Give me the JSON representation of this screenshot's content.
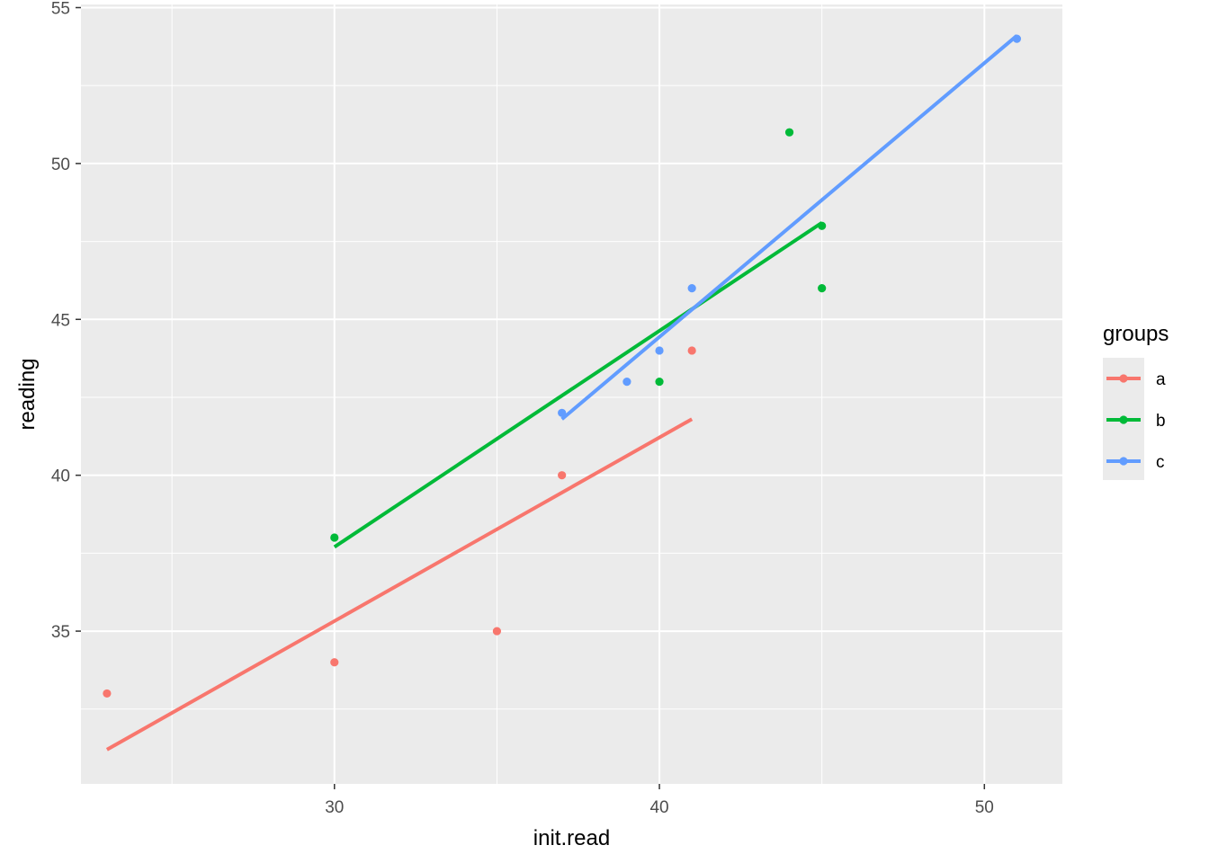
{
  "chart_data": {
    "type": "scatter",
    "xlabel": "init.read",
    "ylabel": "reading",
    "xlim": [
      22.2,
      52.4
    ],
    "ylim": [
      30.1,
      55.1
    ],
    "x_ticks": [
      30,
      40,
      50
    ],
    "x_minor_ticks": [
      25,
      35,
      45
    ],
    "y_ticks": [
      35,
      40,
      45,
      50,
      55
    ],
    "y_minor_ticks": [
      32.5,
      37.5,
      42.5,
      47.5,
      52.5
    ],
    "grid": true,
    "legend": {
      "title": "groups",
      "placement": "right"
    },
    "series": [
      {
        "name": "a",
        "color": "#F8766D",
        "points": [
          [
            23,
            33
          ],
          [
            30,
            34
          ],
          [
            35,
            35
          ],
          [
            37,
            40
          ],
          [
            41,
            44
          ]
        ],
        "fit": [
          [
            23,
            31.2
          ],
          [
            41,
            41.8
          ]
        ]
      },
      {
        "name": "b",
        "color": "#00BA38",
        "points": [
          [
            30,
            38
          ],
          [
            40,
            43
          ],
          [
            44,
            51
          ],
          [
            45,
            48
          ],
          [
            45,
            46
          ]
        ],
        "fit": [
          [
            30,
            37.7
          ],
          [
            45,
            48.1
          ]
        ]
      },
      {
        "name": "c",
        "color": "#619CFF",
        "points": [
          [
            37,
            42
          ],
          [
            39,
            43
          ],
          [
            40,
            44
          ],
          [
            41,
            46
          ],
          [
            51,
            54
          ]
        ],
        "fit": [
          [
            37,
            41.8
          ],
          [
            51,
            54.1
          ]
        ]
      }
    ]
  }
}
